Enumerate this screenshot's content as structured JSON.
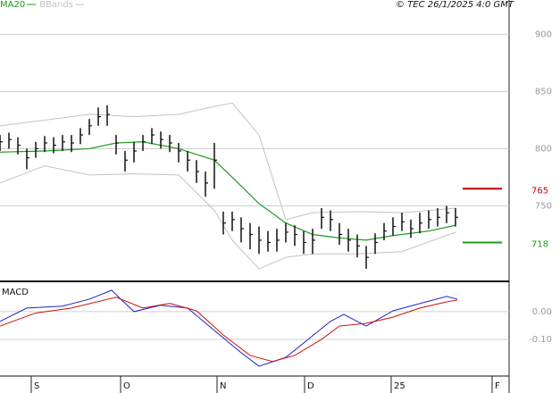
{
  "chart_data": [
    {
      "type": "ohlc",
      "copyright": "© TEC 26/1/2025 4:0 GMT",
      "x": [
        0,
        1,
        2,
        3,
        4,
        5,
        6,
        7,
        8,
        9,
        10,
        11,
        12,
        13,
        14,
        15,
        16,
        17,
        18,
        19,
        20,
        21,
        22,
        23,
        24,
        25,
        26,
        27,
        28,
        29,
        30,
        31,
        32,
        33,
        34,
        35,
        36,
        37,
        38,
        39,
        40,
        41,
        42,
        43,
        44,
        45,
        46,
        47,
        48,
        49,
        50,
        51
      ],
      "high": [
        812,
        814,
        810,
        800,
        806,
        811,
        810,
        812,
        812,
        818,
        826,
        836,
        838,
        812,
        798,
        806,
        812,
        818,
        815,
        812,
        805,
        798,
        790,
        780,
        805,
        745,
        745,
        740,
        735,
        732,
        728,
        730,
        735,
        733,
        728,
        730,
        748,
        746,
        735,
        730,
        725,
        715,
        726,
        735,
        740,
        744,
        738,
        744,
        746,
        748,
        750,
        748
      ],
      "low": [
        798,
        800,
        795,
        782,
        792,
        797,
        796,
        798,
        797,
        804,
        812,
        820,
        820,
        795,
        780,
        788,
        798,
        804,
        800,
        797,
        788,
        780,
        770,
        758,
        765,
        725,
        728,
        718,
        712,
        708,
        710,
        710,
        718,
        715,
        708,
        708,
        730,
        728,
        716,
        710,
        705,
        695,
        708,
        720,
        724,
        728,
        722,
        726,
        730,
        732,
        735,
        732
      ],
      "close": [
        806,
        808,
        803,
        792,
        800,
        805,
        803,
        806,
        805,
        812,
        820,
        828,
        830,
        805,
        790,
        798,
        806,
        812,
        808,
        805,
        798,
        790,
        780,
        770,
        790,
        735,
        738,
        730,
        725,
        720,
        718,
        720,
        727,
        725,
        718,
        720,
        740,
        738,
        725,
        720,
        715,
        705,
        718,
        728,
        732,
        736,
        730,
        735,
        738,
        740,
        744,
        740
      ],
      "color": "#111111",
      "overlays": [
        {
          "name": "MA20",
          "color": "#1a9c1a",
          "x": [
            0,
            5,
            10,
            13,
            16,
            20,
            24,
            26,
            29,
            32,
            35,
            38,
            41,
            44,
            48,
            51
          ],
          "values": [
            797,
            798,
            800,
            805,
            806,
            800,
            790,
            775,
            752,
            735,
            725,
            722,
            720,
            724,
            728,
            733
          ]
        },
        {
          "name": "BBands",
          "color": "#c4c4c4",
          "x": [
            0,
            5,
            10,
            15,
            20,
            24,
            26,
            29,
            32,
            35,
            40,
            45,
            51
          ],
          "upper": [
            820,
            825,
            830,
            828,
            830,
            837,
            840,
            812,
            738,
            744,
            745,
            744,
            748
          ],
          "lower": [
            770,
            785,
            777,
            778,
            777,
            746,
            720,
            695,
            705,
            708,
            708,
            710,
            727
          ]
        }
      ],
      "levels": [
        {
          "value": 765,
          "color": "#c00000"
        },
        {
          "value": 718,
          "color": "#1a9c1a"
        }
      ],
      "xlim": [
        0,
        57
      ],
      "ylim": [
        684,
        930
      ],
      "yticks": [
        750,
        800,
        850,
        900
      ],
      "grid": true
    },
    {
      "type": "line",
      "title": "MACD",
      "series": [
        {
          "color": "#2222cc",
          "x": [
            0,
            3,
            7,
            10,
            12.5,
            15,
            18,
            21,
            24,
            27,
            29,
            32,
            34.5,
            37,
            38.5,
            41,
            44,
            47,
            50,
            51.2
          ],
          "values": [
            -0.035,
            0.013,
            0.02,
            0.045,
            0.077,
            0,
            0.023,
            0.013,
            -0.068,
            -0.148,
            -0.197,
            -0.165,
            -0.1,
            -0.035,
            -0.01,
            -0.052,
            0.003,
            0.029,
            0.055,
            0.045
          ]
        },
        {
          "color": "#cc1111",
          "x": [
            0,
            4,
            8,
            13,
            16,
            19,
            22,
            25,
            28,
            30.5,
            33,
            36,
            38,
            41,
            44,
            47,
            50,
            51.2
          ],
          "values": [
            -0.052,
            -0.005,
            0.013,
            0.052,
            0.013,
            0.03,
            0.003,
            -0.084,
            -0.158,
            -0.18,
            -0.158,
            -0.1,
            -0.052,
            -0.042,
            -0.02,
            0.013,
            0.035,
            0.042
          ]
        }
      ],
      "xlim": [
        0,
        57
      ],
      "ylim": [
        -0.229,
        0.106
      ],
      "yticks": [
        {
          "value": 0,
          "label": "0.00"
        },
        {
          "value": -0.1,
          "label": "-0.10"
        }
      ],
      "xticks": [
        {
          "value": 3.5,
          "label": "S"
        },
        {
          "value": 13.5,
          "label": "O"
        },
        {
          "value": 24.3,
          "label": "N"
        },
        {
          "value": 34.1,
          "label": "D"
        },
        {
          "value": 43.8,
          "label": "25"
        },
        {
          "value": 55.1,
          "label": "F"
        }
      ],
      "grid": true
    }
  ]
}
